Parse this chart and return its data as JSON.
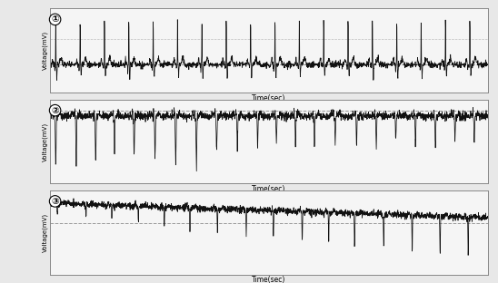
{
  "background_color": "#e8e8e8",
  "panel_bg": "#f5f5f5",
  "line_color": "#111111",
  "ref_line_color": "#999999",
  "ylabel": "Voltage(mV)",
  "xlabel": "Time(sec)",
  "labels": [
    "①",
    "②",
    "③"
  ],
  "figsize": [
    5.48,
    3.12
  ],
  "dpi": 100,
  "duration": 10.0,
  "plot1_ylim": [
    -0.6,
    1.2
  ],
  "plot2_ylim": [
    -1.4,
    0.35
  ],
  "plot3_ylim": [
    -1.0,
    0.55
  ]
}
